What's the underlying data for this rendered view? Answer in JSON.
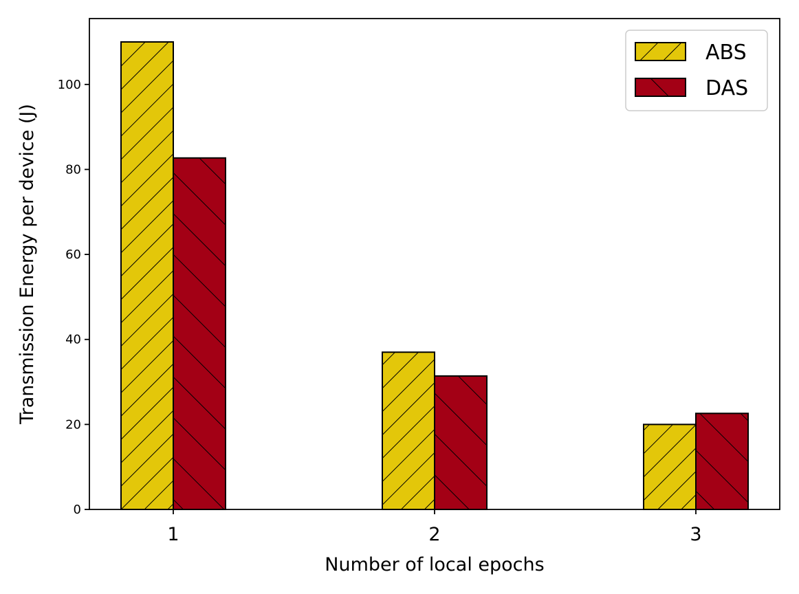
{
  "chart_data": {
    "type": "bar",
    "title": "",
    "xlabel": "Number of local epochs",
    "ylabel": "Transmission Energy per device (J)",
    "categories": [
      "1",
      "2",
      "3"
    ],
    "series": [
      {
        "name": "ABS",
        "values": [
          110.0,
          37.0,
          20.0
        ],
        "color": "#E3C70A",
        "hatch": "forward-diagonal"
      },
      {
        "name": "DAS",
        "values": [
          82.7,
          31.4,
          22.6
        ],
        "color": "#A30015",
        "hatch": "back-diagonal"
      }
    ],
    "ylim": [
      0,
      115.5
    ],
    "yticks": [
      0,
      20,
      40,
      60,
      80,
      100
    ],
    "grid": false,
    "legend_position": "top-right"
  }
}
